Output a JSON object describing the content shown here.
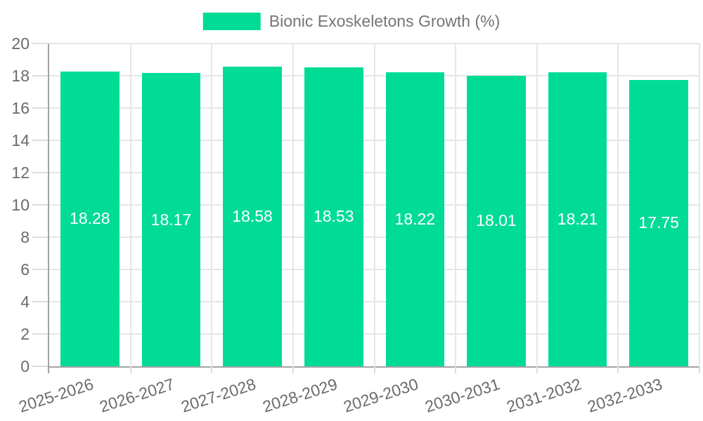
{
  "chart_data": {
    "type": "bar",
    "title": "Bionic Exoskeletons Growth (%)",
    "categories": [
      "2025-2026",
      "2026-2027",
      "2027-2028",
      "2028-2029",
      "2029-2030",
      "2030-2031",
      "2031-2032",
      "2032-2033"
    ],
    "values": [
      18.28,
      18.17,
      18.58,
      18.53,
      18.22,
      18.01,
      18.21,
      17.75
    ],
    "bar_labels": [
      "18.28",
      "18.17",
      "18.58",
      "18.53",
      "18.22",
      "18.01",
      "18.21",
      "17.75"
    ],
    "xlabel": "",
    "ylabel": "",
    "ylim": [
      0,
      20
    ],
    "yticks": [
      0,
      2,
      4,
      6,
      8,
      10,
      12,
      14,
      16,
      18,
      20
    ],
    "grid": {
      "horizontal": true,
      "vertical": true
    },
    "legend": {
      "position": "top",
      "entries": [
        {
          "label": "Bionic Exoskeletons Growth (%)",
          "color": "#00dc96"
        }
      ]
    },
    "x_label_rotation_deg": -18,
    "bar_color": "#00dc96",
    "bar_value_label_color": "#ffffff"
  },
  "style_colors": {
    "background": "#ffffff",
    "grid_line": "#e6e6e6",
    "tick_line": "#dedede",
    "axis_line": "#a3a3a3",
    "tick_text": "#6b6b6b",
    "legend_text": "#757575"
  }
}
